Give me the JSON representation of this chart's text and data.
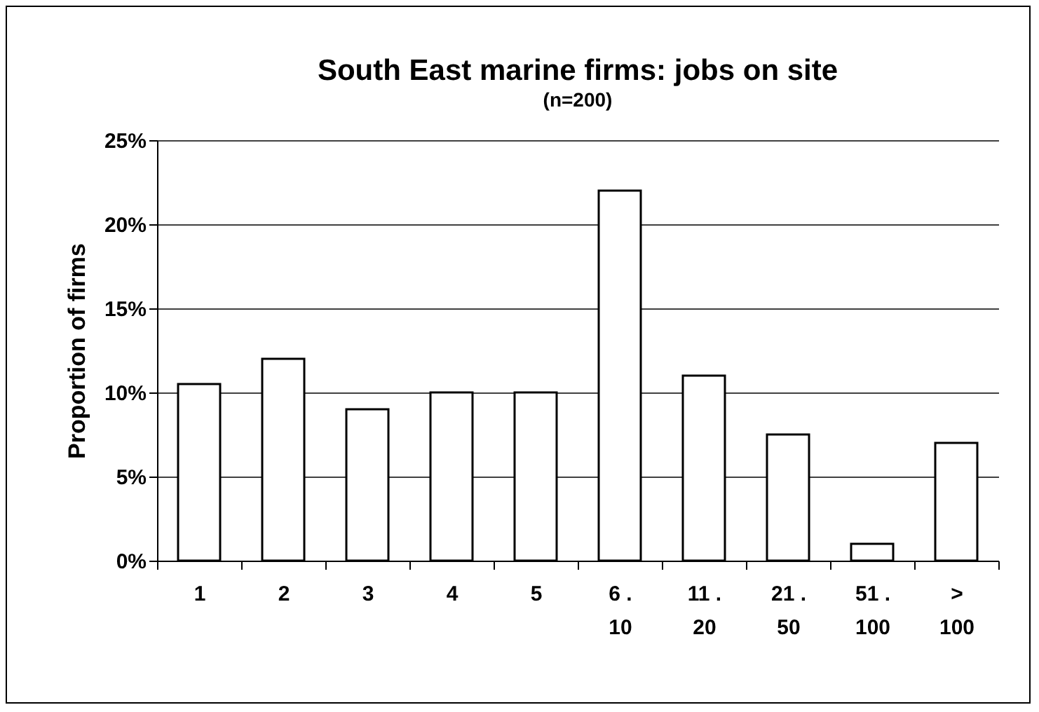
{
  "chart_data": {
    "type": "bar",
    "title": "South East marine firms: jobs on site",
    "subtitle": "(n=200)",
    "ylabel": "Proportion of firms",
    "categories": [
      "1",
      "2",
      "3",
      "4",
      "5",
      "6 .\n10",
      "11 .\n20",
      "21 .\n50",
      "51 .\n100",
      ">\n100"
    ],
    "values": [
      10.5,
      12,
      9,
      10,
      10,
      22,
      11,
      7.5,
      1,
      7
    ],
    "color": "#ffffff",
    "ylim": [
      0,
      25
    ],
    "yticks": [
      {
        "value": 0,
        "label": "0%"
      },
      {
        "value": 5,
        "label": "5%"
      },
      {
        "value": 10,
        "label": "10%"
      },
      {
        "value": 15,
        "label": "15%"
      },
      {
        "value": 20,
        "label": "20%"
      },
      {
        "value": 25,
        "label": "25%"
      }
    ],
    "grid": "y"
  }
}
